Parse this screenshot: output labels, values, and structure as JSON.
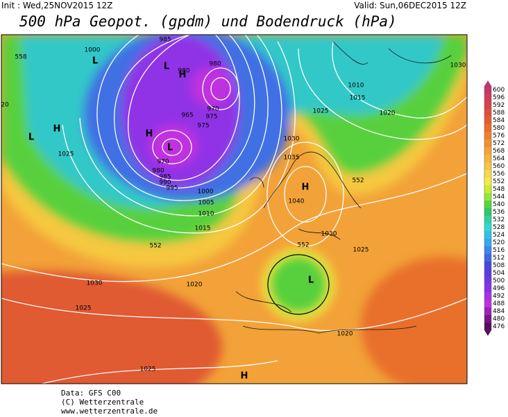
{
  "header": {
    "init": "Init : Wed,25NOV2015 12Z",
    "valid": "Valid: Sun,06DEC2015 12Z",
    "title": "500 hPa Geopot. (gpdm) und Bodendruck (hPa)"
  },
  "map": {
    "labels": [
      "1000",
      "985",
      "980",
      "980",
      "970",
      "975",
      "965",
      "975",
      "970",
      "980",
      "985",
      "990",
      "995",
      "1000",
      "1005",
      "1010",
      "1015",
      "1025",
      "1030",
      "1035",
      "1040",
      "1030",
      "1025",
      "1010",
      "1015",
      "1020",
      "1025",
      "1030",
      "1030",
      "1020",
      "1025",
      "1025",
      "1020",
      "20",
      "558",
      "552",
      "552",
      "552",
      "L",
      "L",
      "H",
      "H",
      "L",
      "H",
      "L",
      "H",
      "L",
      "H"
    ]
  },
  "colorbar": {
    "ticks": [
      600,
      596,
      592,
      588,
      584,
      580,
      576,
      572,
      568,
      564,
      560,
      556,
      552,
      548,
      544,
      540,
      536,
      532,
      528,
      524,
      520,
      516,
      512,
      508,
      504,
      500,
      496,
      492,
      488,
      484,
      480,
      476
    ],
    "colors": [
      "#c8346b",
      "#d23c5c",
      "#d9434b",
      "#e0503c",
      "#e65c30",
      "#ec6e26",
      "#f0802a",
      "#f29030",
      "#f4a236",
      "#f6b43c",
      "#f8c640",
      "#fad84a",
      "#f4ec40",
      "#c8ee30",
      "#96e63a",
      "#50d83a",
      "#30c868",
      "#2ed2a2",
      "#30d8d0",
      "#2ec2ea",
      "#36a8f0",
      "#3a88ee",
      "#4068e6",
      "#4848dc",
      "#5a3ce0",
      "#7038e0",
      "#8a30e6",
      "#a830e8",
      "#c030e0",
      "#a020b8",
      "#7a148c",
      "#5a0a60"
    ]
  },
  "footer": {
    "line1": "Data: GFS C00",
    "line2": "(C) Wetterzentrale",
    "line3": "www.wetterzentrale.de"
  }
}
